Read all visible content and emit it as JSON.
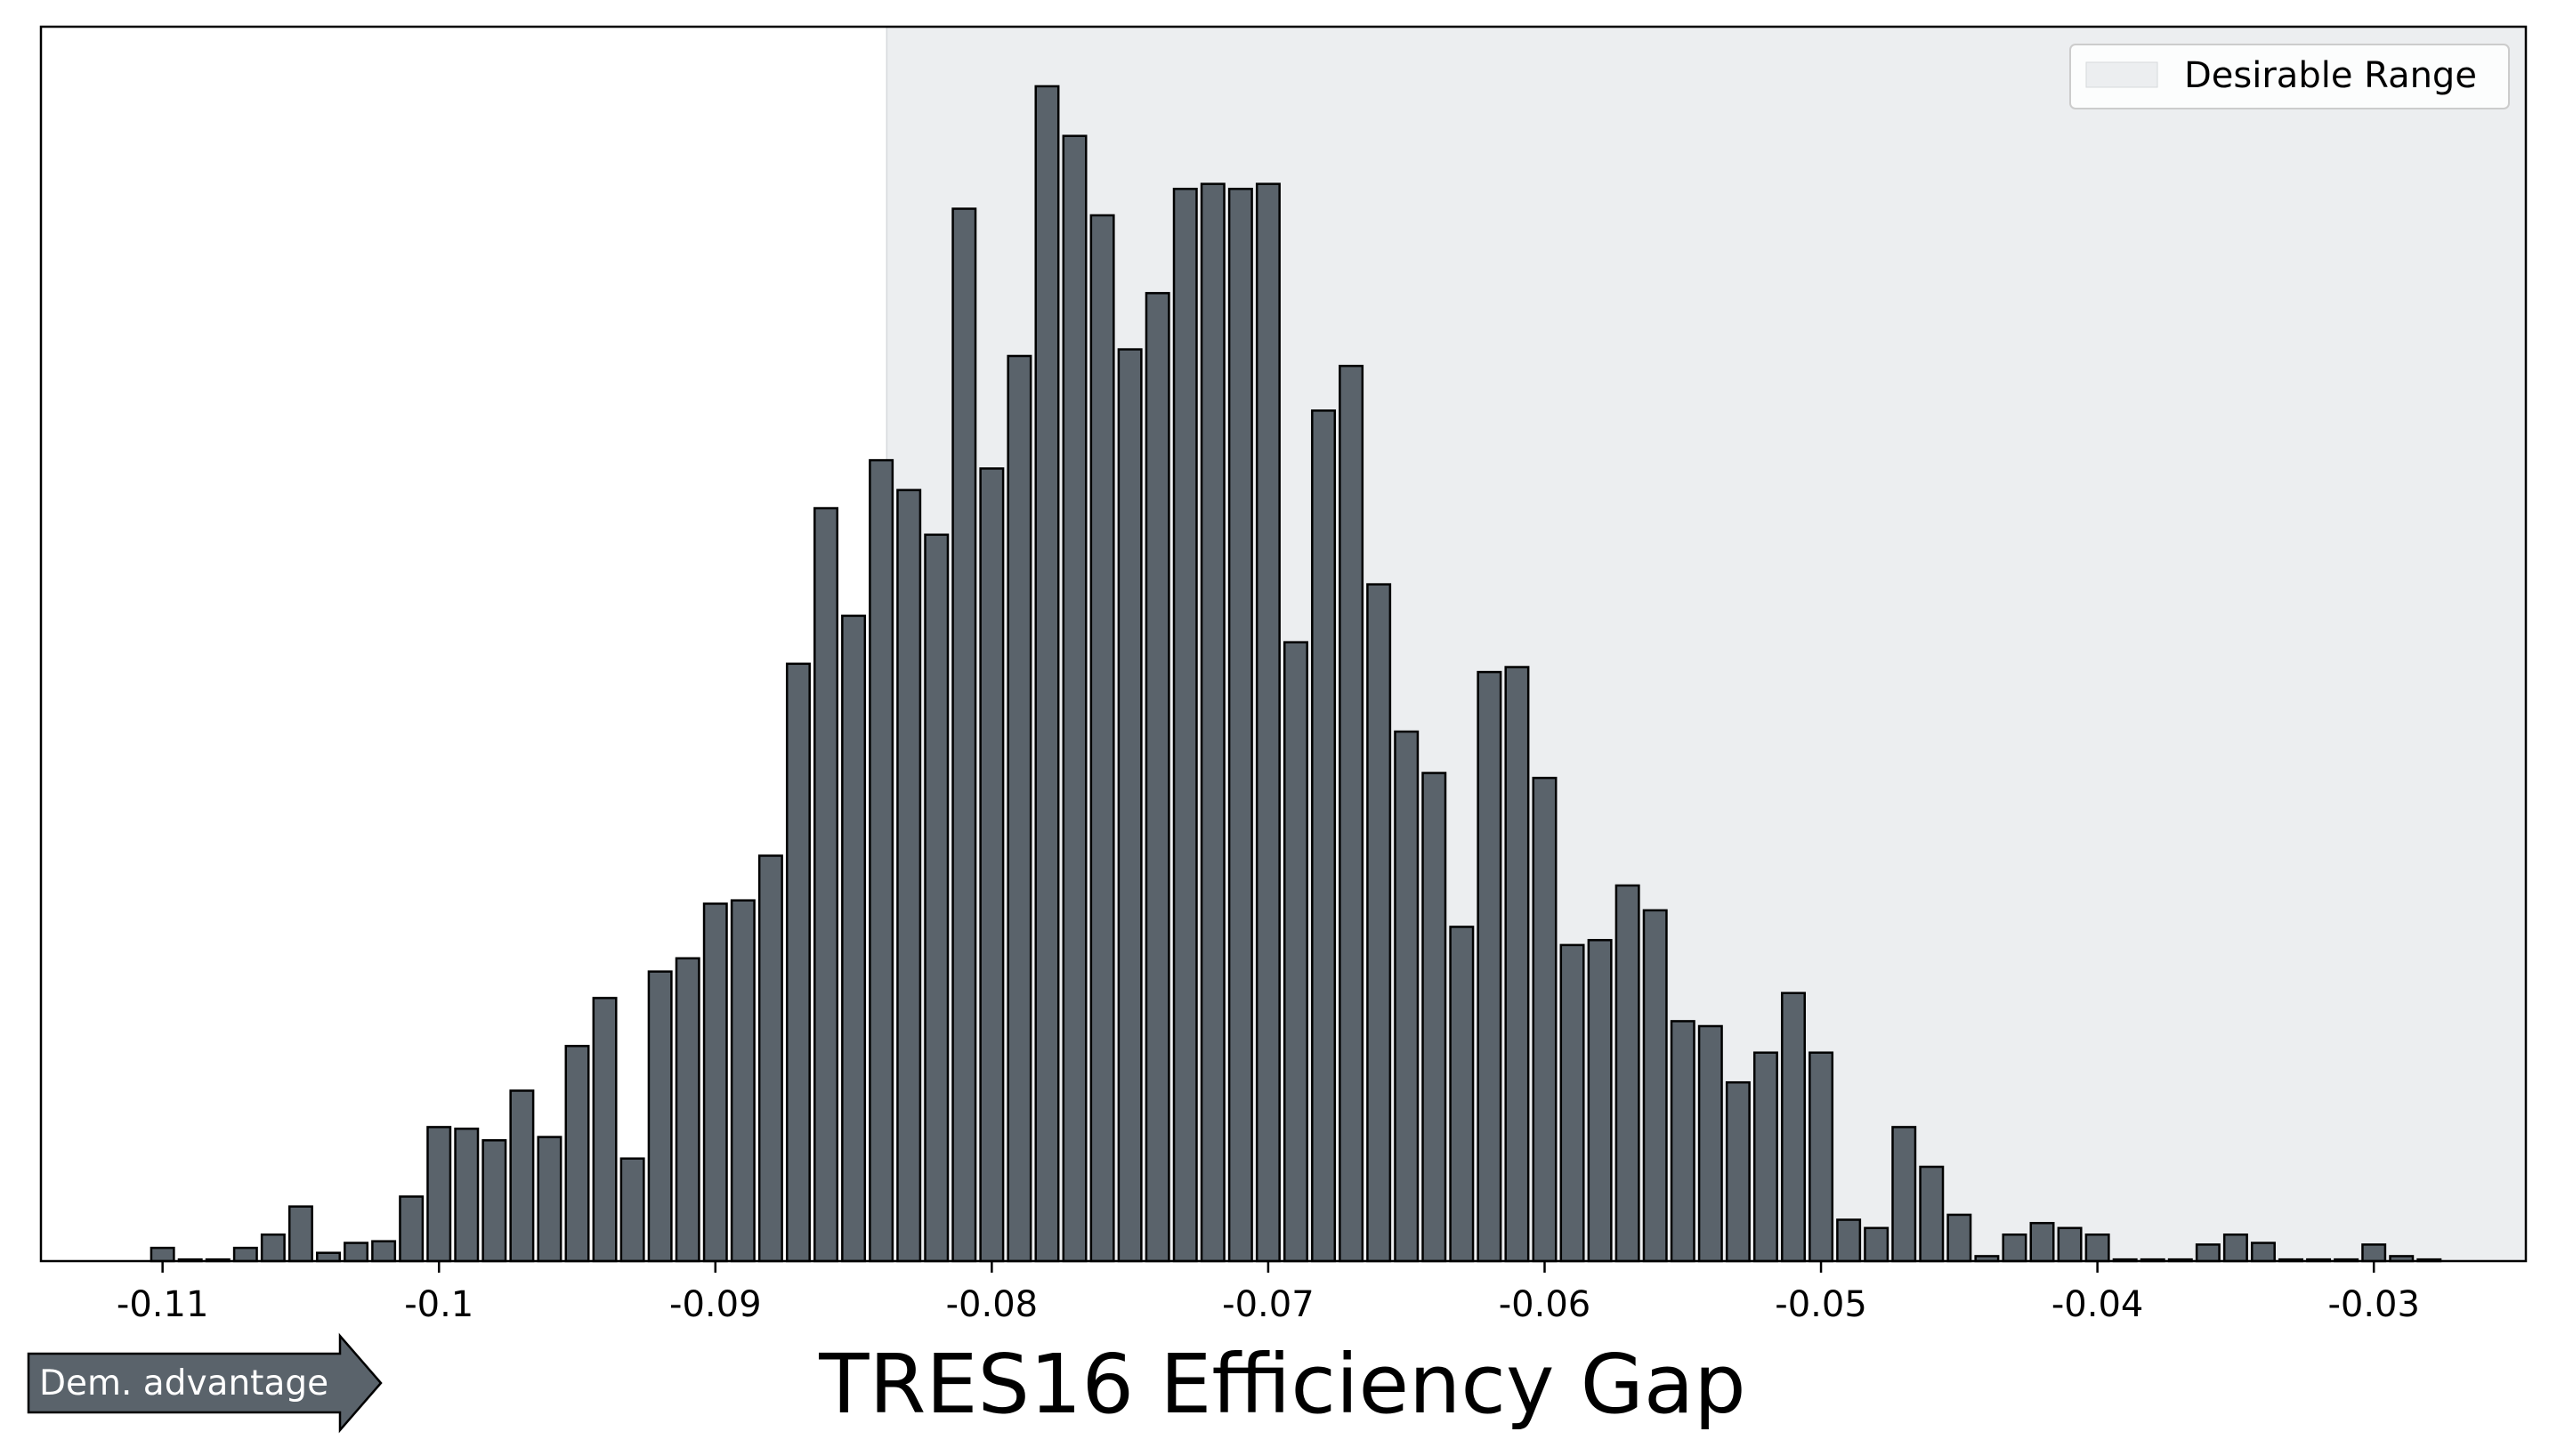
{
  "colors": {
    "bar_fill": "#5a636b",
    "bar_edge": "#000000",
    "desirable_range": "#eceef0",
    "arrow_fill": "#5a636b"
  },
  "chart_data": {
    "type": "bar",
    "xlabel": "TRES16 Efficiency Gap",
    "ylabel": "",
    "xlim": [
      -0.1144,
      -0.0245
    ],
    "xticks": [
      -0.11,
      -0.1,
      -0.09,
      -0.08,
      -0.07,
      -0.06,
      -0.05,
      -0.04,
      -0.03
    ],
    "xtick_labels": [
      "-0.11",
      "-0.1",
      "-0.09",
      "-0.08",
      "-0.07",
      "-0.06",
      "-0.05",
      "-0.04",
      "-0.03"
    ],
    "y_axis_visible": false,
    "grid": false,
    "bin_start": -0.11,
    "bin_width": 0.001,
    "values": [
      0.8,
      0.1,
      0.1,
      0.8,
      1.6,
      3.3,
      0.5,
      1.1,
      1.2,
      3.9,
      8.1,
      8.0,
      7.3,
      10.3,
      7.5,
      13.0,
      15.9,
      6.2,
      17.5,
      18.3,
      21.6,
      21.8,
      24.5,
      36.1,
      45.5,
      39.0,
      48.4,
      46.6,
      43.9,
      63.6,
      47.9,
      54.7,
      71.0,
      68.0,
      63.2,
      55.1,
      58.5,
      64.8,
      65.1,
      64.8,
      65.1,
      37.4,
      51.4,
      54.1,
      40.9,
      32.0,
      29.5,
      20.2,
      35.6,
      35.9,
      29.2,
      19.1,
      19.4,
      22.7,
      21.2,
      14.5,
      14.2,
      10.8,
      12.6,
      16.2,
      12.6,
      2.5,
      2.0,
      8.1,
      5.7,
      2.8,
      0.3,
      1.6,
      2.3,
      2.0,
      1.6,
      0.1,
      0.1,
      0.1,
      1.0,
      1.6,
      1.1,
      0.1,
      0.1,
      0.1,
      1.0,
      0.3,
      0.1
    ],
    "ylim": [
      0,
      74.6
    ],
    "shaded_region": {
      "label": "Desirable Range",
      "from": -0.0838,
      "to": -0.0245
    },
    "legend": {
      "position": "top-right",
      "entries": [
        "Desirable Range"
      ]
    },
    "annotation": {
      "text": "Dem. advantage"
    }
  }
}
